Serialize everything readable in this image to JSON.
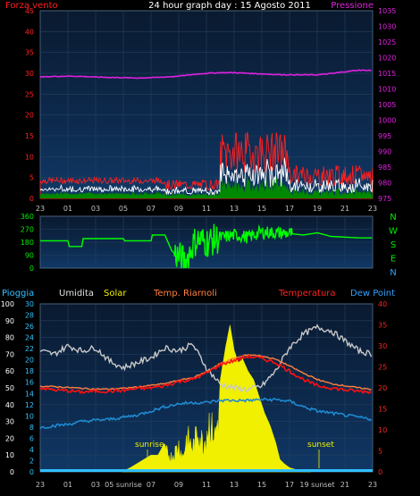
{
  "title": "24 hour graph day : 15 Agosto 2011",
  "chart_data": [
    {
      "type": "line",
      "left_label": "Forza vento",
      "right_label": "Pressione",
      "x_ticks": [
        "23",
        "01",
        "03",
        "05",
        "07",
        "09",
        "11",
        "13",
        "15",
        "17",
        "19",
        "21",
        "23"
      ],
      "y_left": {
        "range": [
          0,
          45
        ],
        "ticks": [
          "0",
          "5",
          "10",
          "15",
          "20",
          "25",
          "30",
          "35",
          "40",
          "45"
        ]
      },
      "y_right": {
        "range": [
          975,
          1035
        ],
        "ticks": [
          "975",
          "980",
          "985",
          "990",
          "995",
          "1000",
          "1005",
          "1010",
          "1015",
          "1020",
          "1025",
          "1030",
          "1035"
        ]
      },
      "colors": {
        "pressure": "#e020e0",
        "gust": "#ff2020",
        "wind": "#ffffff",
        "avg": "#00a000"
      },
      "series": [
        {
          "key": "pressure",
          "x": [
            0,
            1,
            2,
            3,
            4,
            5,
            6,
            7,
            8,
            9,
            10,
            11,
            12,
            13,
            14,
            15,
            16,
            17,
            18,
            19,
            20,
            21,
            22,
            23,
            24
          ],
          "values": [
            1013.8,
            1014.0,
            1014.1,
            1014.0,
            1013.8,
            1013.7,
            1013.6,
            1013.5,
            1013.6,
            1013.8,
            1014.1,
            1014.6,
            1015.0,
            1015.2,
            1015.2,
            1015.0,
            1014.8,
            1014.6,
            1014.5,
            1014.5,
            1014.5,
            1014.9,
            1015.5,
            1016.0,
            1015.9
          ]
        }
      ]
    },
    {
      "type": "line",
      "right_labels": [
        "N",
        "W",
        "S",
        "E",
        "N"
      ],
      "right_label_colors": [
        "#00ee00",
        "#00ee00",
        "#00ee00",
        "#00ee00",
        "#30a0ff"
      ],
      "x_ticks": [],
      "y_left": {
        "range": [
          0,
          360
        ],
        "ticks": [
          "0",
          "90",
          "180",
          "270",
          "360"
        ]
      },
      "colors": {
        "direction": "#00ff00"
      },
      "series": [
        {
          "key": "direction",
          "x": [
            0,
            2,
            2.1,
            3,
            3.1,
            6,
            6.1,
            8,
            8.1,
            9,
            9.5,
            10,
            10.5,
            11,
            11.3,
            12,
            13,
            14,
            15,
            16,
            17,
            18,
            19,
            20,
            21,
            22,
            23,
            24
          ],
          "values": [
            190,
            190,
            150,
            150,
            205,
            205,
            190,
            190,
            230,
            230,
            120,
            80,
            40,
            160,
            200,
            180,
            210,
            230,
            215,
            250,
            245,
            240,
            230,
            245,
            220,
            215,
            210,
            210
          ]
        }
      ]
    },
    {
      "type": "line",
      "legend": [
        "Pioggia",
        "Umidita",
        "Solar",
        "Temp. Riarnoli",
        "Temperatura",
        "Dew Point"
      ],
      "legend_colors": [
        "#30c0ff",
        "#e0e0e0",
        "#f0f000",
        "#ff8040",
        "#ff2020",
        "#30a0ff"
      ],
      "x_ticks": [
        "23",
        "01",
        "03",
        "05 sunrise",
        "07",
        "09",
        "11",
        "13",
        "15",
        "17",
        "19 sunset",
        "21",
        "23"
      ],
      "annotations": [
        "sunrise",
        "sunset"
      ],
      "y_left_outer": {
        "range": [
          0,
          100
        ],
        "ticks": [
          "0",
          "10",
          "20",
          "30",
          "40",
          "50",
          "60",
          "70",
          "80",
          "90",
          "100"
        ]
      },
      "y_left_inner": {
        "range": [
          0,
          30
        ],
        "ticks": [
          "0",
          "2",
          "4",
          "6",
          "8",
          "10",
          "12",
          "14",
          "16",
          "18",
          "20",
          "22",
          "24",
          "26",
          "28",
          "30"
        ]
      },
      "y_right": {
        "range": [
          0,
          40
        ],
        "ticks": [
          "0",
          "5",
          "10",
          "15",
          "20",
          "25",
          "30",
          "35",
          "40"
        ]
      },
      "colors": {
        "humidity": "#c8c8c8",
        "temp": "#ff1010",
        "temp_riarnoli": "#ff8040",
        "dew": "#1e8ad0",
        "solar": "#f0f000",
        "rain": "#30c0ff"
      },
      "series": [
        {
          "key": "humidity",
          "name": "Umidita",
          "axis": "outer",
          "x": [
            0,
            1,
            2,
            3,
            4,
            5,
            6,
            7,
            8,
            9,
            10,
            11,
            12,
            13,
            14,
            15,
            16,
            17,
            18,
            19,
            20,
            21,
            22,
            23,
            24
          ],
          "values": [
            72,
            70,
            75,
            72,
            74,
            66,
            62,
            65,
            68,
            74,
            72,
            76,
            62,
            52,
            50,
            49,
            51,
            60,
            74,
            82,
            86,
            84,
            78,
            72,
            70
          ]
        },
        {
          "key": "temp",
          "name": "Temperatura",
          "axis": "right",
          "x": [
            0,
            1,
            2,
            3,
            4,
            5,
            6,
            7,
            8,
            9,
            10,
            11,
            12,
            13,
            14,
            15,
            16,
            17,
            18,
            19,
            20,
            21,
            22,
            23,
            24
          ],
          "values": [
            20,
            19.5,
            19.3,
            19,
            19.2,
            19.2,
            19.4,
            19.8,
            20,
            20.5,
            21.5,
            22,
            23.5,
            25.5,
            26.5,
            27.5,
            27,
            26,
            24,
            22,
            20.5,
            20,
            19.5,
            19.2,
            19
          ]
        },
        {
          "key": "temp_riarnoli",
          "name": "Temp. Riarnoli",
          "axis": "right",
          "x": [
            0,
            1,
            2,
            3,
            4,
            5,
            6,
            7,
            8,
            9,
            10,
            11,
            12,
            13,
            14,
            15,
            16,
            17,
            18,
            19,
            20,
            21,
            22,
            23,
            24
          ],
          "values": [
            20.4,
            20.3,
            20.1,
            19.9,
            19.7,
            19.7,
            19.9,
            20.2,
            20.6,
            21,
            21.8,
            22.4,
            23.8,
            25.8,
            27,
            27.9,
            27.6,
            26.8,
            25.2,
            23.5,
            22,
            21,
            20.5,
            20,
            19.6
          ]
        },
        {
          "key": "dew",
          "name": "Dew Point",
          "axis": "right",
          "x": [
            0,
            1,
            2,
            3,
            4,
            5,
            6,
            7,
            8,
            9,
            10,
            11,
            12,
            13,
            14,
            15,
            16,
            17,
            18,
            19,
            20,
            21,
            22,
            23,
            24
          ],
          "values": [
            10.5,
            11,
            11.3,
            12,
            12.3,
            12.5,
            13,
            13.5,
            14.5,
            15.5,
            16.2,
            16.5,
            16.5,
            17,
            17,
            17,
            17.2,
            17.2,
            16.8,
            15.5,
            14.5,
            14,
            13.5,
            13,
            12.5
          ]
        },
        {
          "key": "solar",
          "name": "Solar",
          "axis": "right",
          "x": [
            5.9,
            6.5,
            7,
            7.5,
            8,
            8.5,
            9,
            9.5,
            10,
            10.3,
            10.6,
            11,
            11.4,
            11.8,
            12.2,
            12.6,
            13,
            13.4,
            13.7,
            14,
            14.3,
            14.6,
            15,
            15.4,
            15.8,
            16.2,
            16.6,
            17,
            17.3,
            17.6,
            18,
            18.5,
            19,
            19.5
          ],
          "values": [
            0,
            1,
            2,
            3,
            4,
            4,
            7,
            5,
            9,
            5,
            12,
            8,
            14,
            9,
            17,
            12,
            22,
            30,
            35,
            29,
            26,
            27,
            24,
            22,
            18,
            14,
            11,
            7,
            3,
            2,
            1,
            0.5,
            0.2,
            0
          ]
        },
        {
          "key": "rain",
          "name": "Pioggia",
          "axis": "outer",
          "x": [
            0,
            24
          ],
          "values": [
            0,
            0
          ]
        }
      ]
    }
  ]
}
